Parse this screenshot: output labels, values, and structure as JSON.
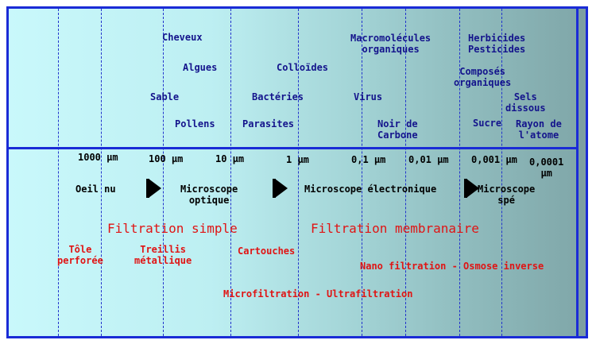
{
  "particles": {
    "cheveux": "Cheveux",
    "algues": "Algues",
    "sable": "Sable",
    "pollens": "Pollens",
    "colloides": "Colloïdes",
    "bacteries": "Bactéries",
    "parasites": "Parasites",
    "macromolecules_1": "Macromolécules",
    "macromolecules_2": "organiques",
    "virus": "Virus",
    "noir_1": "Noir de",
    "noir_2": "Carbone",
    "herbicides_1": "Herbicides",
    "herbicides_2": "Pesticides",
    "composes_1": "Composés",
    "composes_2": "organiques",
    "sels_1": "Sels",
    "sels_2": "dissous",
    "sucre": "Sucre",
    "rayon_1": "Rayon de",
    "rayon_2": "l'atome"
  },
  "scale": {
    "s1000": "1000 µm",
    "s100": "100 µm",
    "s10": "10 µm",
    "s1": "1 µm",
    "s01": "0,1 µm",
    "s001": "0,01 µm",
    "s0001": "0,001 µm",
    "s00001_1": "0,0001",
    "s00001_2": "µm"
  },
  "instruments": {
    "oeil": "Oeil nu",
    "optique_1": "Microscope",
    "optique_2": "optique",
    "electronique": "Microscope électronique",
    "spe_1": "Microscope",
    "spe_2": "spé"
  },
  "filtration": {
    "simple": "Filtration simple",
    "membranaire": "Filtration membranaire",
    "tole_1": "Tôle",
    "tole_2": "perforée",
    "treillis_1": "Treillis",
    "treillis_2": "métallique",
    "cartouches": "Cartouches",
    "nano": "Nano filtration - Osmose inverse",
    "micro": "Microfiltration - Ultrafiltration"
  },
  "colors": {
    "border": "#1a2bd6",
    "particle_text": "#14148c",
    "filtration_text": "#e01414"
  }
}
